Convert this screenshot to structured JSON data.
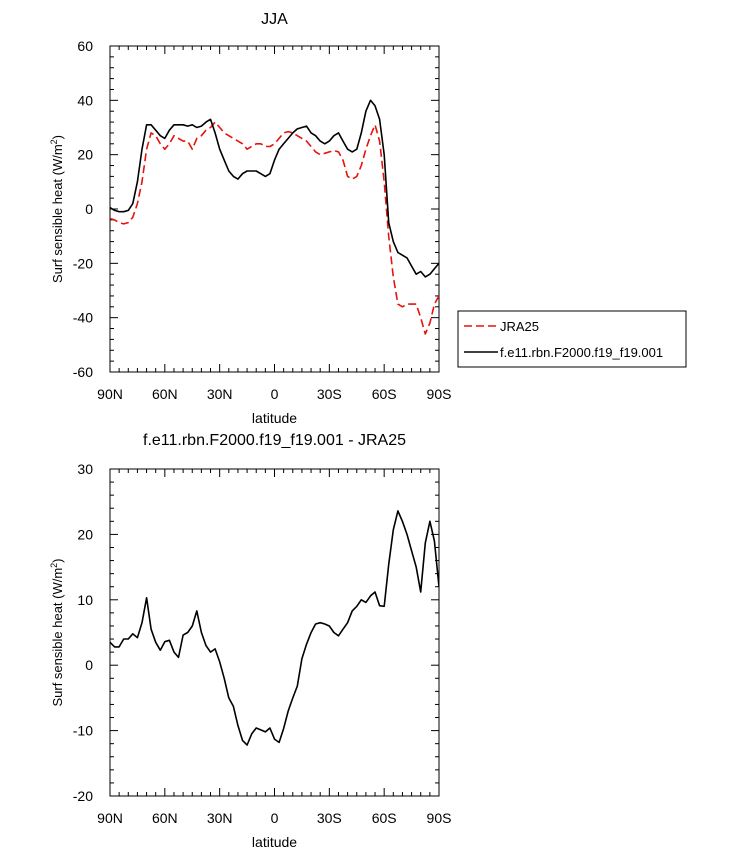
{
  "chart_data": [
    {
      "type": "line",
      "title": "JJA",
      "xlabel": "latitude",
      "ylabel": "Surf sensible heat (W/m",
      "ylabel_sup": "2",
      "ylabel_close": ")",
      "xlim": [
        90,
        -90
      ],
      "ylim": [
        -60,
        60
      ],
      "xticks": [
        {
          "value": 90,
          "label": "90N"
        },
        {
          "value": 60,
          "label": "60N"
        },
        {
          "value": 30,
          "label": "30N"
        },
        {
          "value": 0,
          "label": "0"
        },
        {
          "value": -30,
          "label": "30S"
        },
        {
          "value": -60,
          "label": "60S"
        },
        {
          "value": -90,
          "label": "90S"
        }
      ],
      "yticks": [
        {
          "value": -60,
          "label": "-60"
        },
        {
          "value": -40,
          "label": "-40"
        },
        {
          "value": -20,
          "label": "-20"
        },
        {
          "value": 0,
          "label": "0"
        },
        {
          "value": 20,
          "label": "20"
        },
        {
          "value": 40,
          "label": "40"
        },
        {
          "value": 60,
          "label": "60"
        }
      ],
      "legend_position": "right",
      "series": [
        {
          "name": "JRA25",
          "color": "#e8120c",
          "dash": "dashed",
          "x": [
            90,
            87.5,
            85,
            82.5,
            80,
            77.5,
            75,
            72.5,
            70,
            67.5,
            65,
            62.5,
            60,
            57.5,
            55,
            52.5,
            50,
            47.5,
            45,
            42.5,
            40,
            37.5,
            35,
            32.5,
            30,
            27.5,
            25,
            22.5,
            20,
            17.5,
            15,
            12.5,
            10,
            7.5,
            5,
            2.5,
            0,
            -2.5,
            -5,
            -7.5,
            -10,
            -12.5,
            -15,
            -17.5,
            -20,
            -22.5,
            -25,
            -27.5,
            -30,
            -32.5,
            -35,
            -37.5,
            -40,
            -42.5,
            -45,
            -47.5,
            -50,
            -52.5,
            -55,
            -57.5,
            -60,
            -62.5,
            -65,
            -67.5,
            -70,
            -72.5,
            -75,
            -77.5,
            -80,
            -82.5,
            -85,
            -87.5,
            -90
          ],
          "values": [
            -3.5,
            -4,
            -5,
            -5.5,
            -5,
            -3,
            2,
            10,
            22,
            28,
            27,
            24,
            22,
            24,
            27,
            26,
            25,
            25,
            22,
            26,
            27,
            29,
            30,
            32,
            30,
            28,
            27,
            26,
            25,
            24,
            22,
            23,
            24,
            24,
            23,
            23,
            24,
            26,
            28,
            28.5,
            28,
            27,
            26,
            25,
            23,
            21,
            20,
            20.5,
            21,
            21.5,
            21,
            18,
            12,
            11,
            12,
            16,
            22,
            27,
            31,
            25,
            10,
            -10,
            -25,
            -35,
            -36,
            -35,
            -35,
            -35,
            -40,
            -46,
            -42,
            -35,
            -32
          ]
        },
        {
          "name": "f.e11.rbn.F2000.f19_f19.001",
          "color": "#000000",
          "dash": "solid",
          "x": [
            90,
            87.5,
            85,
            82.5,
            80,
            77.5,
            75,
            72.5,
            70,
            67.5,
            65,
            62.5,
            60,
            57.5,
            55,
            52.5,
            50,
            47.5,
            45,
            42.5,
            40,
            37.5,
            35,
            32.5,
            30,
            27.5,
            25,
            22.5,
            20,
            17.5,
            15,
            12.5,
            10,
            7.5,
            5,
            2.5,
            0,
            -2.5,
            -5,
            -7.5,
            -10,
            -12.5,
            -15,
            -17.5,
            -20,
            -22.5,
            -25,
            -27.5,
            -30,
            -32.5,
            -35,
            -37.5,
            -40,
            -42.5,
            -45,
            -47.5,
            -50,
            -52.5,
            -55,
            -57.5,
            -60,
            -62.5,
            -65,
            -67.5,
            -70,
            -72.5,
            -75,
            -77.5,
            -80,
            -82.5,
            -85,
            -87.5,
            -90
          ],
          "values": [
            0.5,
            -0.5,
            -1,
            -1,
            -0.5,
            2,
            10,
            22,
            31,
            31,
            29,
            27,
            26,
            29,
            31,
            31,
            31,
            30.5,
            31,
            30,
            30.5,
            32,
            33,
            28,
            22,
            18,
            14,
            12,
            11,
            13,
            14,
            14,
            14,
            13,
            12,
            13,
            18,
            22,
            24,
            26,
            28,
            29.5,
            30,
            30.5,
            28,
            27,
            25,
            24,
            25,
            27,
            28,
            25,
            22,
            21,
            22,
            28,
            36,
            40,
            38,
            33,
            20,
            -5,
            -12,
            -16,
            -17,
            -18,
            -21,
            -24,
            -23,
            -25,
            -24,
            -22,
            -20
          ]
        }
      ]
    },
    {
      "type": "line",
      "title": "f.e11.rbn.F2000.f19_f19.001 - JRA25",
      "xlabel": "latitude",
      "ylabel": "Surf sensible heat (W/m",
      "ylabel_sup": "2",
      "ylabel_close": ")",
      "xlim": [
        90,
        -90
      ],
      "ylim": [
        -20,
        30
      ],
      "xticks": [
        {
          "value": 90,
          "label": "90N"
        },
        {
          "value": 60,
          "label": "60N"
        },
        {
          "value": 30,
          "label": "30N"
        },
        {
          "value": 0,
          "label": "0"
        },
        {
          "value": -30,
          "label": "30S"
        },
        {
          "value": -60,
          "label": "60S"
        },
        {
          "value": -90,
          "label": "90S"
        }
      ],
      "yticks": [
        {
          "value": -20,
          "label": "-20"
        },
        {
          "value": -10,
          "label": "-10"
        },
        {
          "value": 0,
          "label": "0"
        },
        {
          "value": 10,
          "label": "10"
        },
        {
          "value": 20,
          "label": "20"
        },
        {
          "value": 30,
          "label": "30"
        }
      ],
      "series": [
        {
          "color": "#000000",
          "dash": "solid",
          "x": [
            90,
            87.5,
            85,
            82.5,
            80,
            77.5,
            75,
            72.5,
            70,
            67.5,
            65,
            62.5,
            60,
            57.5,
            55,
            52.5,
            50,
            47.5,
            45,
            42.5,
            40,
            37.5,
            35,
            32.5,
            30,
            27.5,
            25,
            22.5,
            20,
            17.5,
            15,
            12.5,
            10,
            7.5,
            5,
            2.5,
            0,
            -2.5,
            -5,
            -7.5,
            -10,
            -12.5,
            -15,
            -17.5,
            -20,
            -22.5,
            -25,
            -27.5,
            -30,
            -32.5,
            -35,
            -37.5,
            -40,
            -42.5,
            -45,
            -47.5,
            -50,
            -52.5,
            -55,
            -57.5,
            -60,
            -62.5,
            -65,
            -67.5,
            -70,
            -72.5,
            -75,
            -77.5,
            -80,
            -82.5,
            -85,
            -87.5,
            -90
          ],
          "values": [
            3.5,
            2.8,
            2.8,
            4,
            4,
            4.8,
            4.2,
            6.5,
            10.3,
            5.5,
            3.5,
            2.3,
            3.6,
            3.8,
            2,
            1.2,
            4.6,
            5,
            6,
            8.3,
            5,
            3,
            2,
            2.5,
            0.5,
            -2,
            -5,
            -6.3,
            -9.2,
            -11.5,
            -12.2,
            -10.5,
            -9.6,
            -9.9,
            -10.2,
            -9.6,
            -11.3,
            -11.8,
            -9.7,
            -7,
            -5,
            -3.2,
            1,
            3.2,
            5,
            6.3,
            6.5,
            6.3,
            6,
            5,
            4.5,
            5.5,
            6.5,
            8.3,
            9,
            10,
            9.6,
            10.6,
            11.2,
            9.1,
            9,
            15.4,
            20.7,
            23.6,
            22,
            20,
            17.5,
            15,
            11.2,
            18.7,
            22,
            19,
            12
          ]
        }
      ]
    }
  ]
}
